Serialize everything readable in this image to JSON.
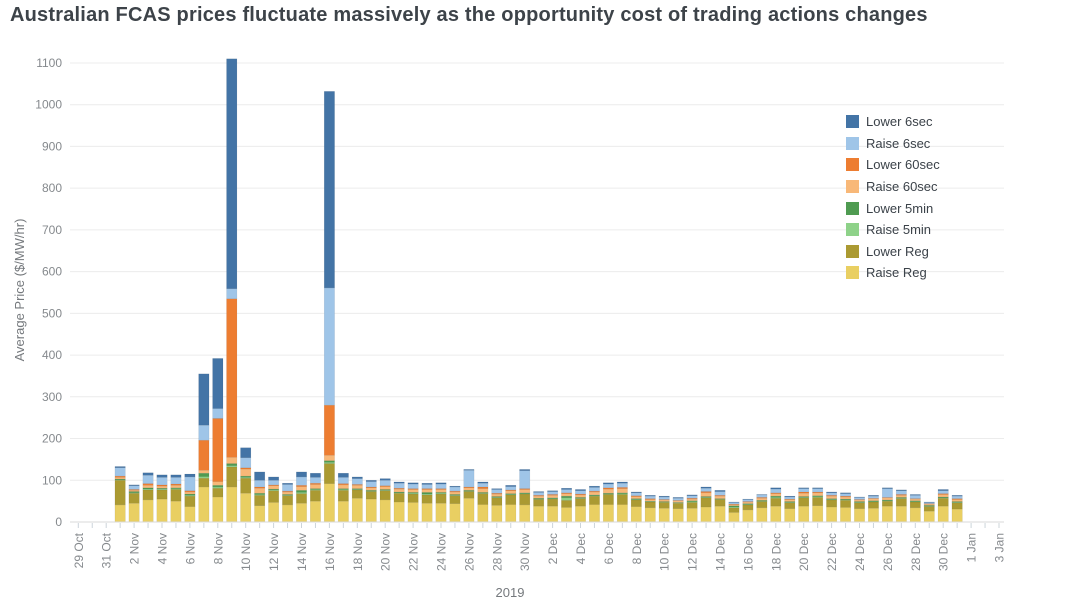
{
  "title": "Australian FCAS prices fluctuate massively as the opportunity cost of trading actions changes",
  "axes": {
    "y_title": "Average Price ($/MW/hr)",
    "y_tick_labels": [
      "0",
      "100",
      "200",
      "300",
      "400",
      "500",
      "600",
      "700",
      "800",
      "900",
      "1000",
      "1100"
    ],
    "x_tick_labels": [
      "29 Oct",
      "31 Oct",
      "2 Nov",
      "4 Nov",
      "6 Nov",
      "8 Nov",
      "10 Nov",
      "12 Nov",
      "14 Nov",
      "16 Nov",
      "18 Nov",
      "20 Nov",
      "22 Nov",
      "24 Nov",
      "26 Nov",
      "28 Nov",
      "30 Nov",
      "2 Dec",
      "4 Dec",
      "6 Dec",
      "8 Dec",
      "10 Dec",
      "12 Dec",
      "14 Dec",
      "16 Dec",
      "18 Dec",
      "20 Dec",
      "22 Dec",
      "24 Dec",
      "26 Dec",
      "28 Dec",
      "30 Dec",
      "1 Jan",
      "3 Jan"
    ],
    "x_year_label": "2019"
  },
  "legend": {
    "position": "top-right-inside-plot",
    "items": [
      {
        "label": "Lower 6sec",
        "color": "#4374a6"
      },
      {
        "label": "Raise 6sec",
        "color": "#9fc5e8"
      },
      {
        "label": "Lower 60sec",
        "color": "#ed7d31"
      },
      {
        "label": "Raise 60sec",
        "color": "#f8b878"
      },
      {
        "label": "Lower 5min",
        "color": "#4f9b51"
      },
      {
        "label": "Raise 5min",
        "color": "#8ed289"
      },
      {
        "label": "Lower Reg",
        "color": "#ab9a32"
      },
      {
        "label": "Raise Reg",
        "color": "#e9cf62"
      }
    ]
  },
  "chart_data": {
    "type": "bar",
    "stacked": true,
    "stack_note": "series listed in legend order; stacking bottom-to-top is the reverse (Raise Reg at bottom, Lower 6sec on top)",
    "title": "Australian FCAS prices fluctuate massively as the opportunity cost of trading actions changes",
    "xlabel": "2019",
    "ylabel": "Average Price ($/MW/hr)",
    "ylim": [
      0,
      1100
    ],
    "x_axis_range": [
      "29 Oct",
      "3 Jan"
    ],
    "grid": "horizontal",
    "legend_position": "top-right",
    "categories": [
      "1 Nov",
      "2 Nov",
      "3 Nov",
      "4 Nov",
      "5 Nov",
      "6 Nov",
      "7 Nov",
      "8 Nov",
      "9 Nov",
      "10 Nov",
      "11 Nov",
      "12 Nov",
      "13 Nov",
      "14 Nov",
      "15 Nov",
      "16 Nov",
      "17 Nov",
      "18 Nov",
      "19 Nov",
      "20 Nov",
      "21 Nov",
      "22 Nov",
      "23 Nov",
      "24 Nov",
      "25 Nov",
      "26 Nov",
      "27 Nov",
      "28 Nov",
      "29 Nov",
      "30 Nov",
      "1 Dec",
      "2 Dec",
      "3 Dec",
      "4 Dec",
      "5 Dec",
      "6 Dec",
      "7 Dec",
      "8 Dec",
      "9 Dec",
      "10 Dec",
      "11 Dec",
      "12 Dec",
      "13 Dec",
      "14 Dec",
      "15 Dec",
      "16 Dec",
      "17 Dec",
      "18 Dec",
      "19 Dec",
      "20 Dec",
      "21 Dec",
      "22 Dec",
      "23 Dec",
      "24 Dec",
      "25 Dec",
      "26 Dec",
      "27 Dec",
      "28 Dec",
      "29 Dec",
      "30 Dec",
      "31 Dec"
    ],
    "series": [
      {
        "name": "Lower 6sec",
        "color": "#4374a6",
        "values": [
          3,
          2,
          6,
          6,
          6,
          7,
          123,
          120,
          551,
          24,
          20,
          8,
          3,
          12,
          10,
          471,
          10,
          4,
          3,
          4,
          3,
          3,
          3,
          3,
          2,
          2,
          3,
          2,
          3,
          3,
          2,
          2,
          3,
          3,
          3,
          3,
          3,
          2,
          2,
          2,
          2,
          2,
          3,
          3,
          1,
          1,
          1,
          3,
          2,
          2,
          2,
          2,
          2,
          1,
          2,
          2,
          2,
          2,
          1,
          3,
          2
        ]
      },
      {
        "name": "Raise 6sec",
        "color": "#9fc5e8",
        "values": [
          20,
          9,
          20,
          18,
          16,
          33,
          36,
          24,
          24,
          24,
          16,
          11,
          16,
          20,
          14,
          281,
          15,
          14,
          13,
          13,
          12,
          11,
          10,
          11,
          10,
          40,
          9,
          9,
          8,
          43,
          7,
          7,
          8,
          8,
          9,
          9,
          10,
          7,
          6,
          6,
          5,
          6,
          8,
          9,
          4,
          5,
          6,
          9,
          5,
          8,
          8,
          6,
          6,
          5,
          5,
          21,
          9,
          8,
          3,
          7,
          6
        ]
      },
      {
        "name": "Lower 60sec",
        "color": "#ed7d31",
        "values": [
          3,
          2,
          4,
          3,
          3,
          3,
          72,
          151,
          380,
          3,
          3,
          2,
          2,
          3,
          3,
          120,
          3,
          2,
          2,
          2,
          2,
          2,
          2,
          2,
          2,
          2,
          4,
          2,
          2,
          2,
          2,
          2,
          2,
          2,
          2,
          3,
          3,
          2,
          2,
          1,
          1,
          2,
          3,
          2,
          1,
          1,
          2,
          2,
          1,
          3,
          2,
          2,
          2,
          1,
          1,
          1,
          2,
          1,
          1,
          2,
          2
        ]
      },
      {
        "name": "Raise 60sec",
        "color": "#f8b878",
        "values": [
          4,
          3,
          6,
          5,
          6,
          5,
          7,
          9,
          15,
          17,
          12,
          8,
          6,
          9,
          10,
          13,
          9,
          8,
          6,
          7,
          7,
          7,
          7,
          7,
          6,
          6,
          9,
          6,
          7,
          8,
          5,
          6,
          6,
          6,
          7,
          10,
          10,
          5,
          4,
          4,
          4,
          4,
          9,
          6,
          3,
          4,
          5,
          6,
          5,
          8,
          7,
          6,
          5,
          4,
          5,
          5,
          5,
          4,
          3,
          6,
          5
        ]
      },
      {
        "name": "Lower 5min",
        "color": "#4f9b51",
        "values": [
          2,
          3,
          3,
          2,
          2,
          3,
          8,
          4,
          5,
          3,
          3,
          2,
          2,
          5,
          2,
          4,
          2,
          2,
          2,
          2,
          2,
          2,
          4,
          2,
          2,
          2,
          2,
          2,
          2,
          2,
          2,
          2,
          4,
          2,
          2,
          2,
          2,
          2,
          1,
          1,
          1,
          2,
          2,
          1,
          3,
          2,
          2,
          3,
          2,
          2,
          2,
          2,
          2,
          2,
          2,
          2,
          2,
          2,
          2,
          2,
          2
        ]
      },
      {
        "name": "Raise 5min",
        "color": "#8ed289",
        "values": [
          1,
          1,
          2,
          2,
          2,
          2,
          4,
          3,
          3,
          2,
          2,
          2,
          1,
          3,
          2,
          3,
          2,
          1,
          1,
          1,
          1,
          2,
          2,
          2,
          1,
          1,
          1,
          1,
          1,
          1,
          1,
          1,
          6,
          1,
          1,
          1,
          2,
          1,
          1,
          1,
          1,
          2,
          1,
          1,
          2,
          1,
          1,
          2,
          1,
          1,
          2,
          1,
          1,
          1,
          1,
          1,
          1,
          1,
          1,
          1,
          1
        ]
      },
      {
        "name": "Lower Reg",
        "color": "#ab9a32",
        "values": [
          59,
          24,
          24,
          22,
          28,
          25,
          21,
          21,
          48,
          36,
          25,
          28,
          22,
          23,
          26,
          48,
          26,
          20,
          18,
          22,
          21,
          20,
          20,
          22,
          19,
          16,
          26,
          18,
          23,
          26,
          16,
          17,
          17,
          18,
          20,
          24,
          24,
          16,
          14,
          14,
          13,
          14,
          22,
          16,
          11,
          12,
          15,
          19,
          14,
          20,
          20,
          17,
          17,
          14,
          15,
          12,
          18,
          14,
          11,
          19,
          15
        ]
      },
      {
        "name": "Raise Reg",
        "color": "#e9cf62",
        "values": [
          41,
          45,
          53,
          55,
          50,
          37,
          84,
          60,
          84,
          69,
          39,
          47,
          41,
          45,
          50,
          92,
          50,
          57,
          55,
          53,
          48,
          47,
          45,
          45,
          44,
          57,
          42,
          40,
          42,
          41,
          38,
          38,
          35,
          38,
          42,
          42,
          42,
          37,
          34,
          33,
          32,
          33,
          36,
          38,
          23,
          29,
          34,
          38,
          32,
          38,
          39,
          36,
          35,
          32,
          33,
          38,
          38,
          34,
          26,
          38,
          31
        ]
      }
    ]
  }
}
